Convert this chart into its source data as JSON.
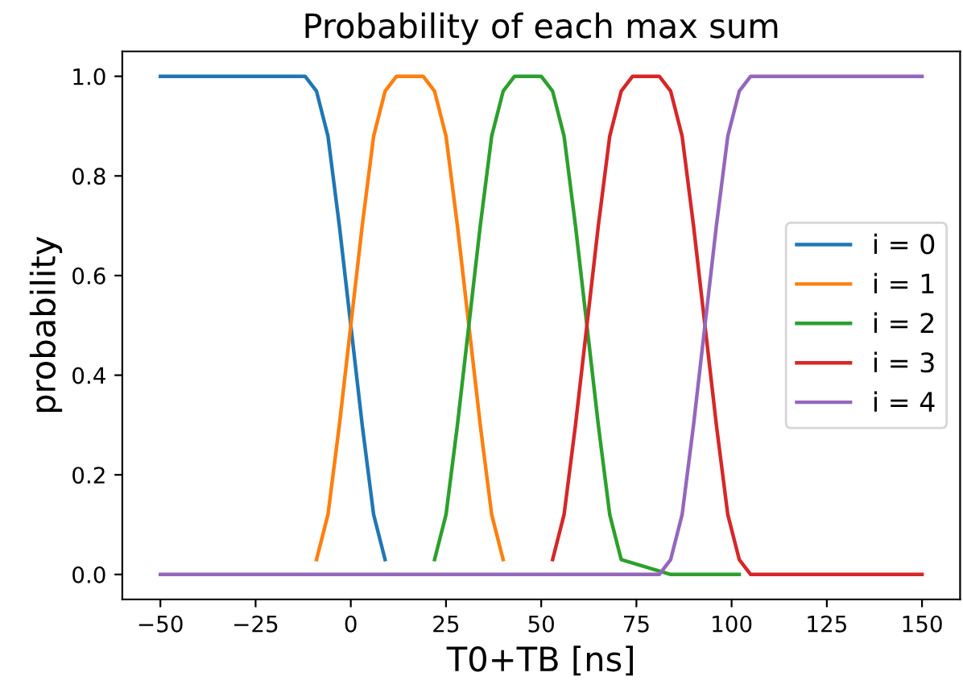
{
  "chart_data": {
    "type": "line",
    "title": "Probability of each max sum",
    "xlabel": "T0+TB [ns]",
    "ylabel": "probability",
    "series": [
      {
        "name": "i = 0",
        "color": "#1f77b4",
        "x": [
          -50,
          -12,
          -9,
          -6,
          -3,
          0,
          3,
          6,
          9
        ],
        "values": [
          1,
          1.0,
          0.97,
          0.88,
          0.7,
          0.5,
          0.3,
          0.12,
          0.03
        ]
      },
      {
        "name": "i = 1",
        "color": "#ff7f0e",
        "x": [
          -9,
          -6,
          -3,
          0,
          3,
          6,
          9,
          12,
          19,
          22,
          25,
          28,
          31,
          34,
          37,
          40
        ],
        "values": [
          0.03,
          0.12,
          0.3,
          0.5,
          0.7,
          0.88,
          0.97,
          1.0,
          1.0,
          0.97,
          0.88,
          0.7,
          0.5,
          0.3,
          0.12,
          0.03
        ]
      },
      {
        "name": "i = 2",
        "color": "#2ca02c",
        "x": [
          22,
          25,
          28,
          31,
          34,
          37,
          40,
          43,
          50,
          53,
          56,
          59,
          62,
          65,
          68,
          71,
          84,
          87,
          90,
          93,
          96,
          99,
          102
        ],
        "values": [
          0.03,
          0.12,
          0.3,
          0.5,
          0.7,
          0.88,
          0.97,
          1.0,
          1.0,
          0.97,
          0.88,
          0.7,
          0.5,
          0.3,
          0.12,
          0.03,
          0,
          0,
          0,
          0,
          0,
          0,
          0
        ]
      },
      {
        "name": "i = 3",
        "color": "#d62728",
        "x": [
          53,
          56,
          59,
          62,
          65,
          68,
          71,
          74,
          81,
          84,
          87,
          90,
          93,
          96,
          99,
          102,
          105,
          150
        ],
        "values": [
          0.03,
          0.12,
          0.3,
          0.5,
          0.7,
          0.88,
          0.97,
          1.0,
          1.0,
          0.97,
          0.88,
          0.7,
          0.5,
          0.3,
          0.12,
          0.03,
          0,
          0
        ]
      },
      {
        "name": "i = 4",
        "color": "#9467bd",
        "x": [
          -50,
          81,
          84,
          87,
          90,
          93,
          96,
          99,
          102,
          105,
          150
        ],
        "values": [
          0,
          0,
          0.03,
          0.12,
          0.3,
          0.5,
          0.7,
          0.88,
          0.97,
          1.0,
          1
        ]
      }
    ],
    "xlim": [
      -60,
      160
    ],
    "xticks": [
      {
        "value": -50,
        "label": "−50"
      },
      {
        "value": -25,
        "label": "−25"
      },
      0,
      25,
      50,
      75,
      100,
      125,
      150
    ],
    "ylim": [
      -0.05,
      1.05
    ],
    "yticks": [
      {
        "value": 0,
        "label": "0.0"
      },
      {
        "value": 0.2,
        "label": "0.2"
      },
      {
        "value": 0.4,
        "label": "0.4"
      },
      {
        "value": 0.6,
        "label": "0.6"
      },
      {
        "value": 0.8,
        "label": "0.8"
      },
      {
        "value": 1,
        "label": "1.0"
      }
    ],
    "grid": false,
    "legend": "center right",
    "marker": "none",
    "line_style": "solid"
  }
}
